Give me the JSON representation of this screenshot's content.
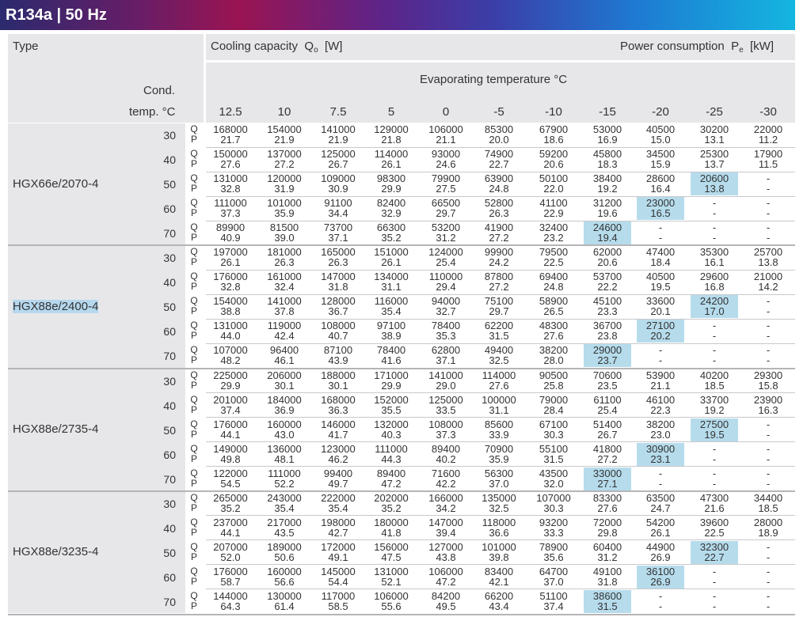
{
  "title": "R134a | 50 Hz",
  "header": {
    "type_label": "Type",
    "cond_label": "Cond.",
    "cond_temp_label": "temp. °C",
    "cooling_capacity": "Cooling capacity",
    "qo_symbol": "Q",
    "qo_sub": "o",
    "qo_unit": "[W]",
    "power_consumption": "Power consumption",
    "pe_symbol": "P",
    "pe_sub": "e",
    "pe_unit": "[kW]",
    "evap_label": "Evaporating temperature °C",
    "evap_temps": [
      "12.5",
      "10",
      "7.5",
      "5",
      "0",
      "-5",
      "-10",
      "-15",
      "-20",
      "-25",
      "-30"
    ]
  },
  "qp_labels": [
    "Q",
    "P"
  ],
  "highlight_color": "#b6dcec",
  "groups": [
    {
      "model": "HGX66e/2070-4",
      "rows": [
        {
          "temp": "30",
          "q": [
            "168000",
            "154000",
            "141000",
            "129000",
            "106000",
            "85300",
            "67900",
            "53000",
            "40500",
            "30200",
            "22000"
          ],
          "p": [
            "21.7",
            "21.9",
            "21.9",
            "21.8",
            "21.1",
            "20.0",
            "18.6",
            "16.9",
            "15.0",
            "13.1",
            "11.2"
          ],
          "hl": -1
        },
        {
          "temp": "40",
          "q": [
            "150000",
            "137000",
            "125000",
            "114000",
            "93000",
            "74900",
            "59200",
            "45800",
            "34500",
            "25300",
            "17900"
          ],
          "p": [
            "27.6",
            "27.2",
            "26.7",
            "26.1",
            "24.6",
            "22.7",
            "20.6",
            "18.3",
            "15.9",
            "13.7",
            "11.5"
          ],
          "hl": -1
        },
        {
          "temp": "50",
          "q": [
            "131000",
            "120000",
            "109000",
            "98300",
            "79900",
            "63900",
            "50100",
            "38400",
            "28600",
            "20600",
            "-"
          ],
          "p": [
            "32.8",
            "31.9",
            "30.9",
            "29.9",
            "27.5",
            "24.8",
            "22.0",
            "19.2",
            "16.4",
            "13.8",
            "-"
          ],
          "hl": 9
        },
        {
          "temp": "60",
          "q": [
            "111000",
            "101000",
            "91100",
            "82400",
            "66500",
            "52800",
            "41100",
            "31200",
            "23000",
            "-",
            "-"
          ],
          "p": [
            "37.3",
            "35.9",
            "34.4",
            "32.9",
            "29.7",
            "26.3",
            "22.9",
            "19.6",
            "16.5",
            "-",
            "-"
          ],
          "hl": 8
        },
        {
          "temp": "70",
          "q": [
            "89900",
            "81500",
            "73700",
            "66300",
            "53200",
            "41900",
            "32400",
            "24600",
            "-",
            "-",
            "-"
          ],
          "p": [
            "40.9",
            "39.0",
            "37.1",
            "35.2",
            "31.2",
            "27.2",
            "23.2",
            "19.4",
            "-",
            "-",
            "-"
          ],
          "hl": 7
        }
      ]
    },
    {
      "model": "HGX88e/2400-4",
      "rows": [
        {
          "temp": "30",
          "q": [
            "197000",
            "181000",
            "165000",
            "151000",
            "124000",
            "99900",
            "79500",
            "62000",
            "47400",
            "35300",
            "25700"
          ],
          "p": [
            "26.1",
            "26.3",
            "26.3",
            "26.1",
            "25.4",
            "24.2",
            "22.5",
            "20.6",
            "18.4",
            "16.1",
            "13.8"
          ],
          "hl": -1
        },
        {
          "temp": "40",
          "q": [
            "176000",
            "161000",
            "147000",
            "134000",
            "110000",
            "87800",
            "69400",
            "53700",
            "40500",
            "29600",
            "21000"
          ],
          "p": [
            "32.8",
            "32.4",
            "31.8",
            "31.1",
            "29.4",
            "27.2",
            "24.8",
            "22.2",
            "19.5",
            "16.8",
            "14.2"
          ],
          "hl": -1
        },
        {
          "temp": "50",
          "q": [
            "154000",
            "141000",
            "128000",
            "116000",
            "94000",
            "75100",
            "58900",
            "45100",
            "33600",
            "24200",
            "-"
          ],
          "p": [
            "38.8",
            "37.8",
            "36.7",
            "35.4",
            "32.7",
            "29.7",
            "26.5",
            "23.3",
            "20.1",
            "17.0",
            "-"
          ],
          "hl": 9
        },
        {
          "temp": "60",
          "q": [
            "131000",
            "119000",
            "108000",
            "97100",
            "78400",
            "62200",
            "48300",
            "36700",
            "27100",
            "-",
            "-"
          ],
          "p": [
            "44.0",
            "42.4",
            "40.7",
            "38.9",
            "35.3",
            "31.5",
            "27.6",
            "23.8",
            "20.2",
            "-",
            "-"
          ],
          "hl": 8
        },
        {
          "temp": "70",
          "q": [
            "107000",
            "96400",
            "87100",
            "78400",
            "62800",
            "49400",
            "38200",
            "29000",
            "-",
            "-",
            "-"
          ],
          "p": [
            "48.2",
            "46.1",
            "43.9",
            "41.6",
            "37.1",
            "32.5",
            "28.0",
            "23.7",
            "-",
            "-",
            "-"
          ],
          "hl": 7
        }
      ]
    },
    {
      "model": "HGX88e/2735-4",
      "rows": [
        {
          "temp": "30",
          "q": [
            "225000",
            "206000",
            "188000",
            "171000",
            "141000",
            "114000",
            "90500",
            "70600",
            "53900",
            "40200",
            "29300"
          ],
          "p": [
            "29.9",
            "30.1",
            "30.1",
            "29.9",
            "29.0",
            "27.6",
            "25.8",
            "23.5",
            "21.1",
            "18.5",
            "15.8"
          ],
          "hl": -1
        },
        {
          "temp": "40",
          "q": [
            "201000",
            "184000",
            "168000",
            "152000",
            "125000",
            "100000",
            "79000",
            "61100",
            "46100",
            "33700",
            "23900"
          ],
          "p": [
            "37.4",
            "36.9",
            "36.3",
            "35.5",
            "33.5",
            "31.1",
            "28.4",
            "25.4",
            "22.3",
            "19.2",
            "16.3"
          ],
          "hl": -1
        },
        {
          "temp": "50",
          "q": [
            "176000",
            "160000",
            "146000",
            "132000",
            "108000",
            "85600",
            "67100",
            "51400",
            "38200",
            "27500",
            "-"
          ],
          "p": [
            "44.1",
            "43.0",
            "41.7",
            "40.3",
            "37.3",
            "33.9",
            "30.3",
            "26.7",
            "23.0",
            "19.5",
            "-"
          ],
          "hl": 9
        },
        {
          "temp": "60",
          "q": [
            "149000",
            "136000",
            "123000",
            "111000",
            "89400",
            "70900",
            "55100",
            "41800",
            "30900",
            "-",
            "-"
          ],
          "p": [
            "49.8",
            "48.1",
            "46.2",
            "44.3",
            "40.2",
            "35.9",
            "31.5",
            "27.2",
            "23.1",
            "-",
            "-"
          ],
          "hl": 8
        },
        {
          "temp": "70",
          "q": [
            "122000",
            "111000",
            "99400",
            "89400",
            "71600",
            "56300",
            "43500",
            "33000",
            "-",
            "-",
            "-"
          ],
          "p": [
            "54.5",
            "52.2",
            "49.7",
            "47.2",
            "42.2",
            "37.0",
            "32.0",
            "27.1",
            "-",
            "-",
            "-"
          ],
          "hl": 7
        }
      ]
    },
    {
      "model": "HGX88e/3235-4",
      "rows": [
        {
          "temp": "30",
          "q": [
            "265000",
            "243000",
            "222000",
            "202000",
            "166000",
            "135000",
            "107000",
            "83300",
            "63500",
            "47300",
            "34400"
          ],
          "p": [
            "35.2",
            "35.4",
            "35.4",
            "35.2",
            "34.2",
            "32.5",
            "30.3",
            "27.6",
            "24.7",
            "21.6",
            "18.5"
          ],
          "hl": -1
        },
        {
          "temp": "40",
          "q": [
            "237000",
            "217000",
            "198000",
            "180000",
            "147000",
            "118000",
            "93200",
            "72000",
            "54200",
            "39600",
            "28000"
          ],
          "p": [
            "44.1",
            "43.5",
            "42.7",
            "41.8",
            "39.4",
            "36.6",
            "33.3",
            "29.8",
            "26.1",
            "22.5",
            "18.9"
          ],
          "hl": -1
        },
        {
          "temp": "50",
          "q": [
            "207000",
            "189000",
            "172000",
            "156000",
            "127000",
            "101000",
            "78900",
            "60400",
            "44900",
            "32300",
            "-"
          ],
          "p": [
            "52.0",
            "50.6",
            "49.1",
            "47.5",
            "43.8",
            "39.8",
            "35.6",
            "31.2",
            "26.9",
            "22.7",
            "-"
          ],
          "hl": 9
        },
        {
          "temp": "60",
          "q": [
            "176000",
            "160000",
            "145000",
            "131000",
            "106000",
            "83400",
            "64700",
            "49100",
            "36100",
            "-",
            "-"
          ],
          "p": [
            "58.7",
            "56.6",
            "54.4",
            "52.1",
            "47.2",
            "42.1",
            "37.0",
            "31.8",
            "26.9",
            "-",
            "-"
          ],
          "hl": 8
        },
        {
          "temp": "70",
          "q": [
            "144000",
            "130000",
            "117000",
            "106000",
            "84200",
            "66200",
            "51100",
            "38600",
            "-",
            "-",
            "-"
          ],
          "p": [
            "64.3",
            "61.4",
            "58.5",
            "55.6",
            "49.5",
            "43.4",
            "37.4",
            "31.5",
            "-",
            "-",
            "-"
          ],
          "hl": 7
        }
      ]
    }
  ]
}
